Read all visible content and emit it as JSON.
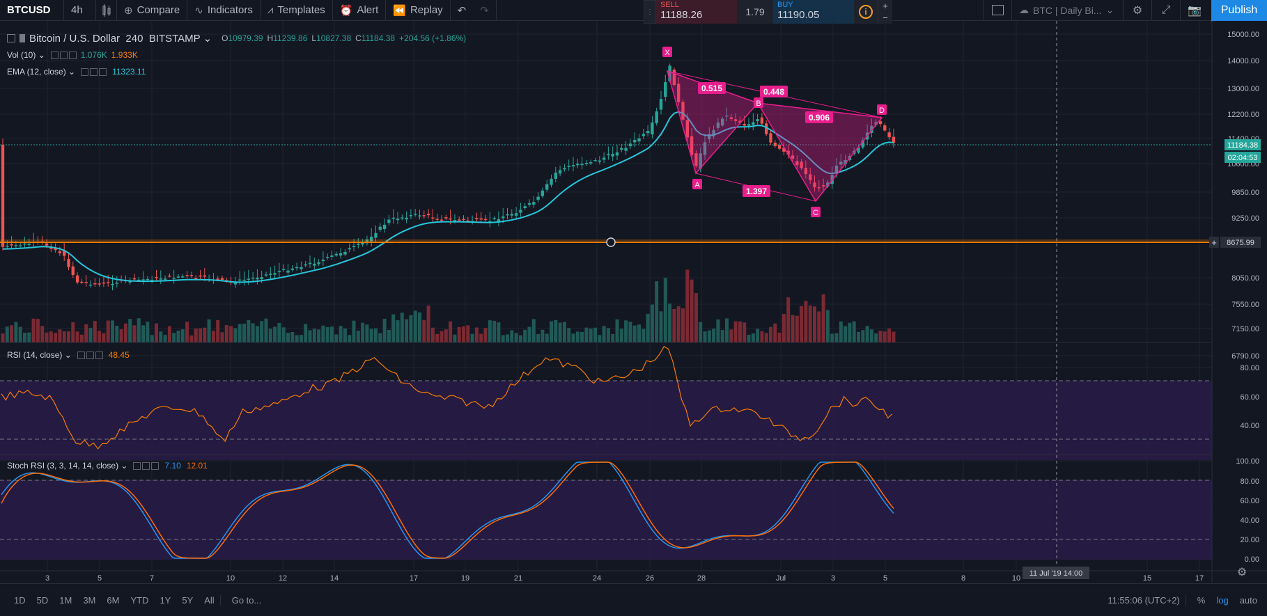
{
  "toolbar": {
    "symbol": "BTCUSD",
    "interval": "4h",
    "compare": "Compare",
    "indicators": "Indicators",
    "templates": "Templates",
    "alert": "Alert",
    "replay": "Replay",
    "layout": "BTC | Daily Bi...",
    "publish": "Publish"
  },
  "trade": {
    "sell_label": "SELL",
    "sell_price": "11188.26",
    "spread": "1.79",
    "buy_label": "BUY",
    "buy_price": "11190.05",
    "info": "i",
    "plus": "+",
    "minus": "−"
  },
  "legend": {
    "title": "Bitcoin / U.S. Dollar",
    "interval": "240",
    "exchange": "BITSTAMP",
    "open": "10979.39",
    "high": "11239.86",
    "low": "10827.38",
    "close": "11184.38",
    "change": "+204.56 (+1.86%)",
    "vol_label": "Vol (10)",
    "vol_value1": "1.076K",
    "vol_value2": "1.933K",
    "ema_label": "EMA (12, close)",
    "ema_value": "11323.11",
    "rsi_label": "RSI (14, close)",
    "rsi_value": "48.45",
    "stoch_label": "Stoch RSI (3, 3, 14, 14, close)",
    "stoch_k": "7.10",
    "stoch_d": "12.01"
  },
  "price_axis": [
    "15000.00",
    "14000.00",
    "13000.00",
    "12200.00",
    "11400.00",
    "10600.00",
    "9850.00",
    "9250.00",
    "8050.00",
    "7550.00",
    "7150.00",
    "6790.00"
  ],
  "price_badges": {
    "last": "11184.38",
    "countdown": "02:04:53",
    "hline": "8675.99"
  },
  "rsi_axis": [
    "80.00",
    "60.00",
    "40.00"
  ],
  "stoch_axis": [
    "100.00",
    "80.00",
    "60.00",
    "40.00",
    "20.00",
    "0.00"
  ],
  "time_axis": [
    "3",
    "5",
    "7",
    "10",
    "12",
    "14",
    "17",
    "19",
    "21",
    "24",
    "26",
    "28",
    "Jul",
    "3",
    "5",
    "8",
    "10",
    "15",
    "17"
  ],
  "crosshair_time": "11 Jul '19  14:00",
  "pattern": {
    "points": [
      "X",
      "A",
      "B",
      "C",
      "D"
    ],
    "ratios": [
      "0.515",
      "0.448",
      "1.397",
      "0.906"
    ]
  },
  "bottom": {
    "ranges": [
      "1D",
      "5D",
      "1M",
      "3M",
      "6M",
      "YTD",
      "1Y",
      "5Y",
      "All"
    ],
    "goto": "Go to...",
    "clock": "11:55:06 (UTC+2)",
    "pct": "%",
    "log": "log",
    "auto": "auto"
  },
  "colors": {
    "up": "#26a69a",
    "down": "#ef5350",
    "ema": "#26c6da",
    "rsi": "#f57c00",
    "stoch_k": "#2196f3",
    "stoch_d": "#ff6d00",
    "pattern": "#e91e8c",
    "hline": "#f57c00"
  }
}
